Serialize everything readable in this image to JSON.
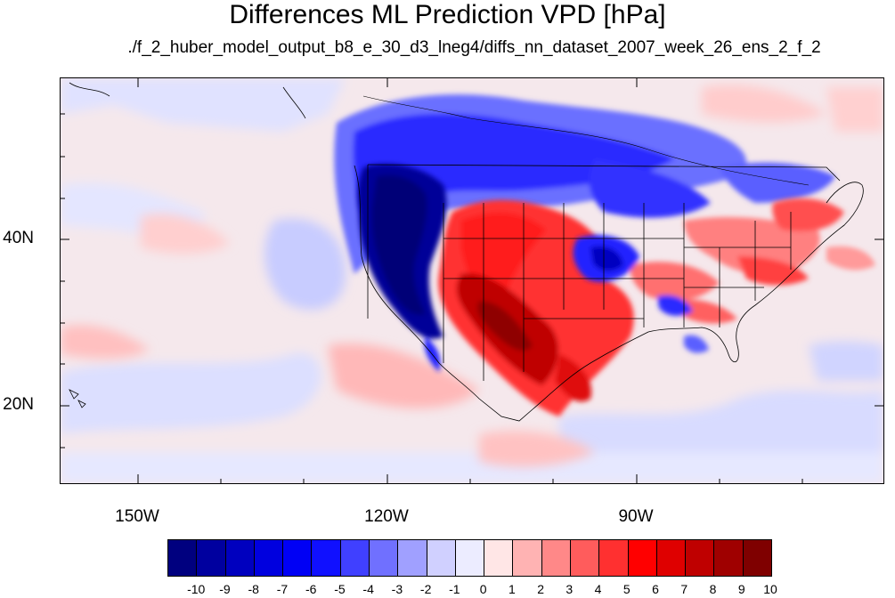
{
  "title": "Differences ML Prediction VPD [hPa]",
  "subtitle": "./f_2_huber_model_output_b8_e_30_d3_lneg4/diffs_nn_dataset_2007_week_26_ens_2_f_2",
  "map": {
    "lat_labels": [
      "40N",
      "20N"
    ],
    "lon_labels": [
      "150W",
      "120W",
      "90W"
    ]
  },
  "colorbar": {
    "labels": [
      "-10",
      "-9",
      "-8",
      "-7",
      "-6",
      "-5",
      "-4",
      "-3",
      "-2",
      "-1",
      "0",
      "1",
      "2",
      "3",
      "4",
      "5",
      "6",
      "7",
      "8",
      "9",
      "10"
    ],
    "colors": [
      "#00007f",
      "#00009f",
      "#0000bf",
      "#0000df",
      "#0000f5",
      "#1010ff",
      "#4040ff",
      "#7070ff",
      "#a0a0ff",
      "#d0d0ff",
      "#ececff",
      "#ffe6e6",
      "#ffb3b3",
      "#ff8888",
      "#ff5c5c",
      "#ff3030",
      "#ff0000",
      "#df0000",
      "#bf0000",
      "#9f0000",
      "#7f0000"
    ]
  }
}
